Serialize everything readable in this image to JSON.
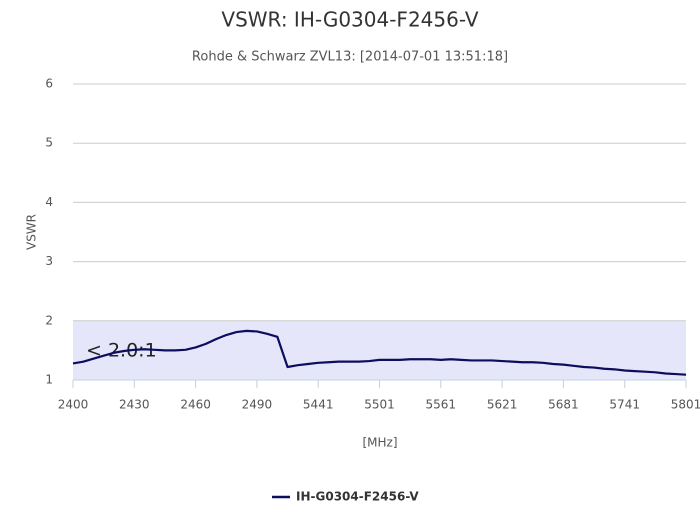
{
  "chart_data": {
    "type": "line",
    "title": "VSWR: IH-G0304-F2456-V",
    "subtitle": "Rohde & Schwarz ZVL13: [2014-07-01 13:51:18]",
    "y_label": "VSWR",
    "x_label": "[MHz]",
    "categories": [
      "2400",
      null,
      null,
      null,
      null,
      null,
      "2430",
      null,
      null,
      null,
      null,
      null,
      "2460",
      null,
      null,
      null,
      null,
      null,
      "2490",
      null,
      null,
      null,
      null,
      null,
      "5441",
      null,
      null,
      null,
      null,
      null,
      "5501",
      null,
      null,
      null,
      null,
      null,
      "5561",
      null,
      null,
      null,
      null,
      null,
      "5621",
      null,
      null,
      null,
      null,
      null,
      "5681",
      null,
      null,
      null,
      null,
      null,
      "5741",
      null,
      null,
      null,
      null,
      null,
      "5801"
    ],
    "series": [
      {
        "name": "IH-G0304-F2456-V",
        "color": "#0d0d5e",
        "values": [
          1.28,
          1.31,
          1.36,
          1.41,
          1.46,
          1.49,
          1.51,
          1.52,
          1.51,
          1.5,
          1.5,
          1.51,
          1.55,
          1.61,
          1.69,
          1.76,
          1.81,
          1.83,
          1.82,
          1.78,
          1.73,
          1.22,
          1.25,
          1.27,
          1.29,
          1.3,
          1.31,
          1.31,
          1.31,
          1.32,
          1.34,
          1.34,
          1.34,
          1.35,
          1.35,
          1.35,
          1.34,
          1.35,
          1.34,
          1.33,
          1.33,
          1.33,
          1.32,
          1.31,
          1.3,
          1.3,
          1.29,
          1.27,
          1.26,
          1.24,
          1.22,
          1.21,
          1.19,
          1.18,
          1.16,
          1.15,
          1.14,
          1.13,
          1.11,
          1.1,
          1.09
        ]
      }
    ],
    "plot_bands": [
      {
        "from": 1,
        "to": 2,
        "label": "< 2.0:1",
        "color": "#e6e6fa"
      }
    ],
    "ylim": [
      1,
      6
    ],
    "yticks": [
      1,
      2,
      3,
      4,
      5,
      6
    ],
    "grid": true,
    "legend": "bottom"
  }
}
